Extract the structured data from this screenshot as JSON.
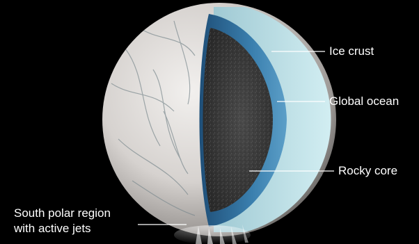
{
  "labels": {
    "ice_crust": "Ice crust",
    "global_ocean": "Global ocean",
    "rocky_core": "Rocky core",
    "south_polar_line1": "South polar region",
    "south_polar_line2": "with active jets"
  },
  "colors": {
    "background": "#000000",
    "ice_surface": "#d9d6d3",
    "ice_crust_layer": "#bcdde3",
    "ocean_layer": "#2f6f9c",
    "rocky_core": "#3b3b3b",
    "leader_line": "#ffffff"
  }
}
